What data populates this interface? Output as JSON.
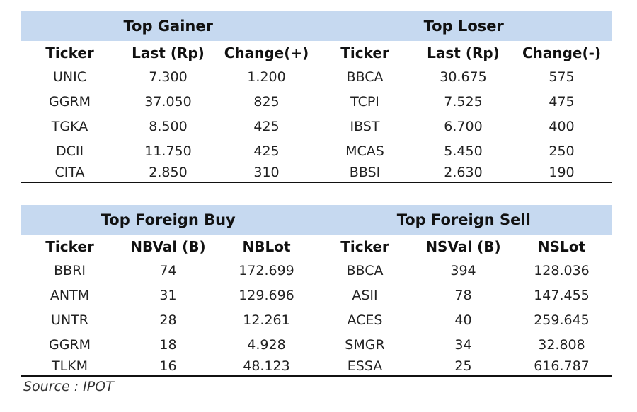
{
  "top": {
    "left_title": "Top Gainer",
    "right_title": "Top Loser",
    "headers": [
      "Ticker",
      "Last (Rp)",
      "Change(+)",
      "Ticker",
      "Last (Rp)",
      "Change(-)"
    ],
    "rows": [
      [
        "UNIC",
        "7.300",
        "1.200",
        "BBCA",
        "30.675",
        "575"
      ],
      [
        "GGRM",
        "37.050",
        "825",
        "TCPI",
        "7.525",
        "475"
      ],
      [
        "TGKA",
        "8.500",
        "425",
        "IBST",
        "6.700",
        "400"
      ],
      [
        "DCII",
        "11.750",
        "425",
        "MCAS",
        "5.450",
        "250"
      ],
      [
        "CITA",
        "2.850",
        "310",
        "BBSI",
        "2.630",
        "190"
      ]
    ]
  },
  "foreign": {
    "left_title": "Top Foreign Buy",
    "right_title": "Top Foreign Sell",
    "headers": [
      "Ticker",
      "NBVal (B)",
      "NBLot",
      "Ticker",
      "NSVal (B)",
      "NSLot"
    ],
    "rows": [
      [
        "BBRI",
        "74",
        "172.699",
        "BBCA",
        "394",
        "128.036"
      ],
      [
        "ANTM",
        "31",
        "129.696",
        "ASII",
        "78",
        "147.455"
      ],
      [
        "UNTR",
        "28",
        "12.261",
        "ACES",
        "40",
        "259.645"
      ],
      [
        "GGRM",
        "18",
        "4.928",
        "SMGR",
        "34",
        "32.808"
      ],
      [
        "TLKM",
        "16",
        "48.123",
        "ESSA",
        "25",
        "616.787"
      ]
    ]
  },
  "source": "Source : IPOT"
}
